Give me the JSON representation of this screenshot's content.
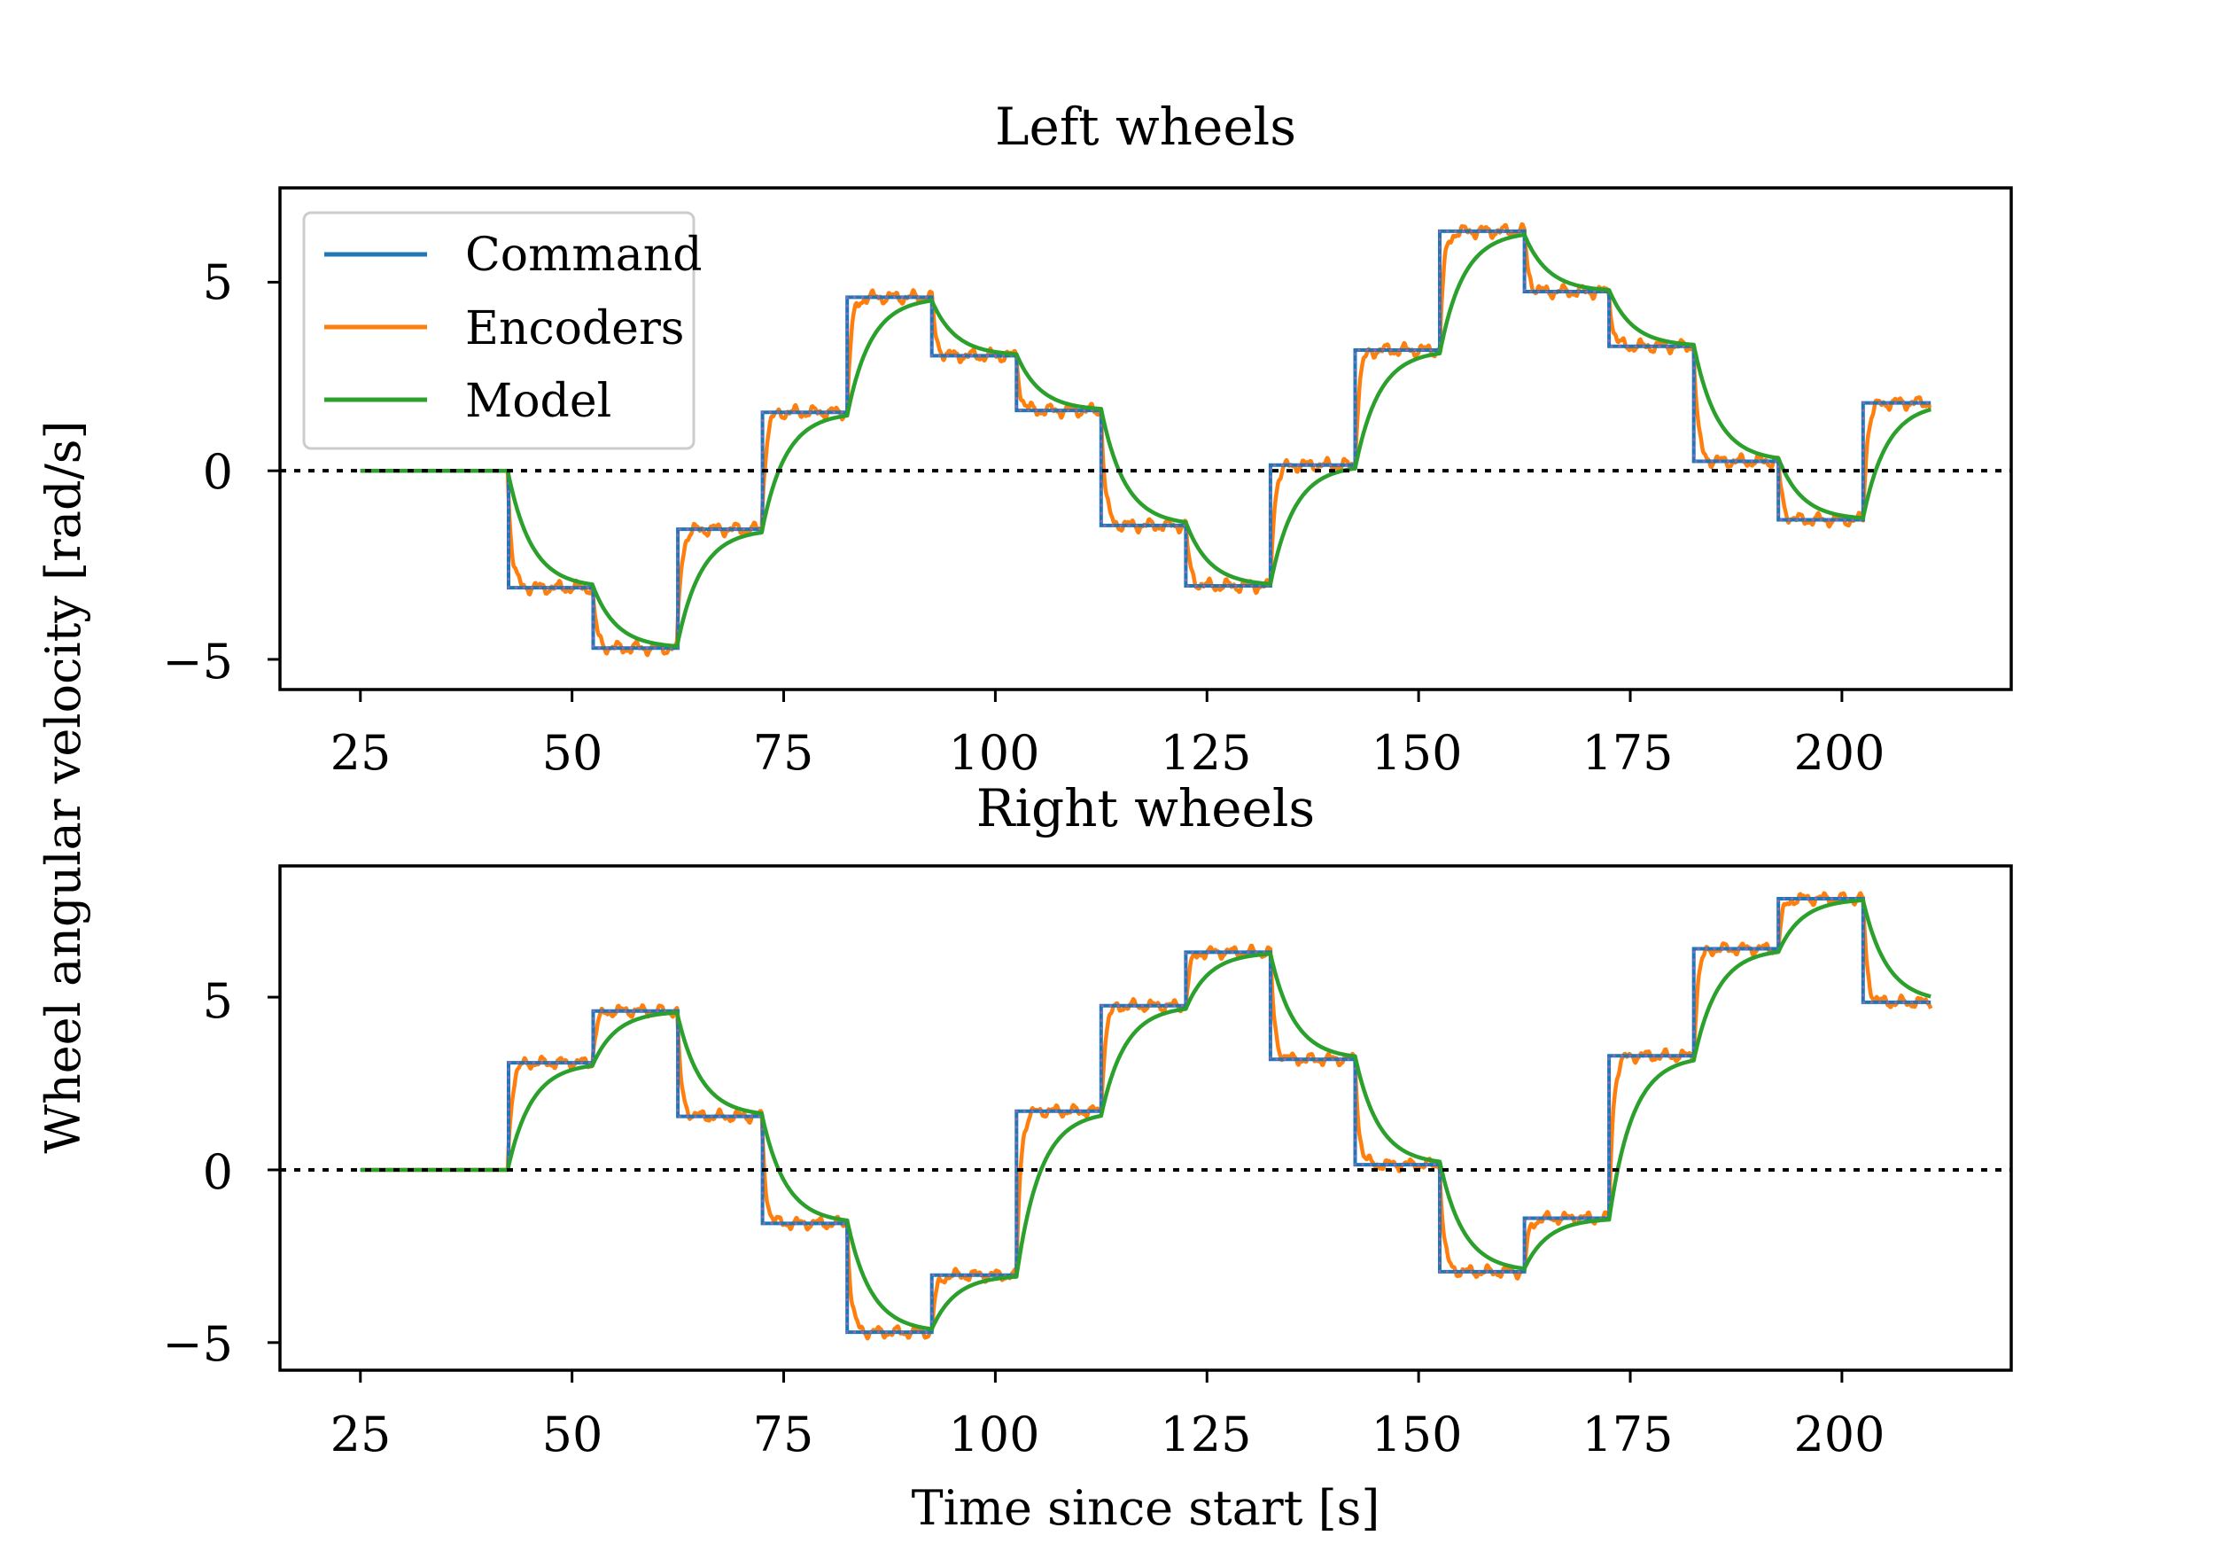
{
  "figure": {
    "ylabel": "Wheel angular velocity [rad/s]",
    "xlabel": "Time since start [s]"
  },
  "legend": {
    "location": "upper left of top panel",
    "entries": [
      {
        "label": "Command",
        "color": "#1f77b4"
      },
      {
        "label": "Encoders",
        "color": "#ff7f0e"
      },
      {
        "label": "Model",
        "color": "#2ca02c"
      }
    ]
  },
  "reference_line": {
    "y": 0,
    "style": "dotted",
    "color": "#000000"
  },
  "chart_data": [
    {
      "type": "line",
      "title": "Left wheels",
      "xlim": [
        15.5,
        220
      ],
      "ylim": [
        -5.8,
        7.5
      ],
      "xticks": [
        "25",
        "50",
        "75",
        "100",
        "125",
        "150",
        "175",
        "200"
      ],
      "yticks": [
        "−5",
        "0",
        "5"
      ],
      "grid": false,
      "step_times": [
        25,
        42.5,
        52.5,
        62.5,
        72.5,
        82.5,
        92.5,
        102.5,
        112.5,
        122.5,
        132.5,
        142.5,
        152.5,
        162.5,
        172.5,
        182.5,
        192.5,
        202.5,
        210.5
      ],
      "command_levels": [
        0,
        -3.1,
        -4.7,
        -1.55,
        1.55,
        4.6,
        3.05,
        1.6,
        -1.45,
        -3.05,
        0.15,
        3.2,
        6.35,
        4.75,
        3.3,
        0.25,
        -1.3,
        1.8
      ],
      "series": [
        {
          "name": "Command",
          "color": "#1f77b4",
          "style": "step"
        },
        {
          "name": "Encoders",
          "color": "#ff7f0e",
          "style": "noisy measurement",
          "noise_amplitude": 0.2
        },
        {
          "name": "Model",
          "color": "#2ca02c",
          "style": "first-order response",
          "time_constant_s": 2.8
        }
      ]
    },
    {
      "type": "line",
      "title": "Right wheels",
      "xlim": [
        15.5,
        220
      ],
      "ylim": [
        -5.8,
        8.8
      ],
      "xticks": [
        "25",
        "50",
        "75",
        "100",
        "125",
        "150",
        "175",
        "200"
      ],
      "yticks": [
        "−5",
        "0",
        "5"
      ],
      "grid": false,
      "step_times": [
        25,
        42.5,
        52.5,
        62.5,
        72.5,
        82.5,
        92.5,
        102.5,
        112.5,
        122.5,
        132.5,
        142.5,
        152.5,
        162.5,
        172.5,
        182.5,
        192.5,
        202.5,
        210.5
      ],
      "command_levels": [
        0,
        3.1,
        4.6,
        1.55,
        -1.55,
        -4.7,
        -3.05,
        1.7,
        4.75,
        6.3,
        3.2,
        0.15,
        -2.95,
        -1.4,
        3.3,
        6.4,
        7.85,
        4.85
      ],
      "series": [
        {
          "name": "Command",
          "color": "#1f77b4",
          "style": "step"
        },
        {
          "name": "Encoders",
          "color": "#ff7f0e",
          "style": "noisy measurement",
          "noise_amplitude": 0.2
        },
        {
          "name": "Model",
          "color": "#2ca02c",
          "style": "first-order response",
          "time_constant_s": 2.8
        }
      ]
    }
  ]
}
